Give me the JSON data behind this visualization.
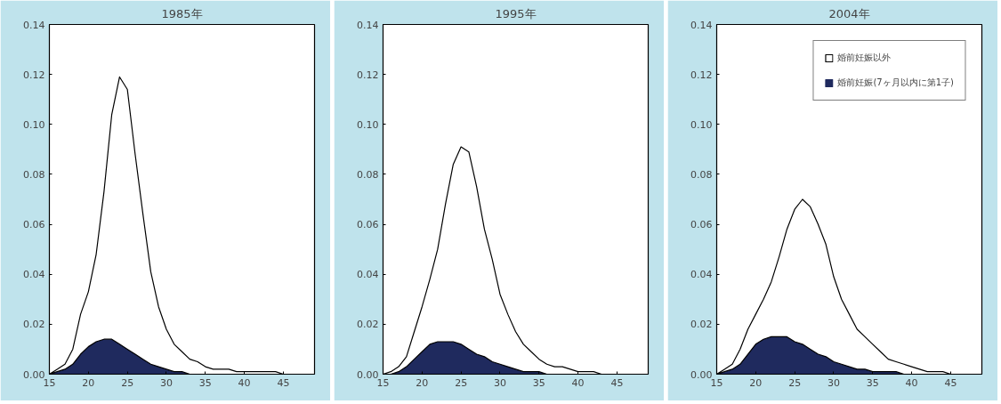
{
  "chart_data": [
    {
      "type": "area",
      "title": "1985年",
      "stacked": true,
      "x": [
        15,
        16,
        17,
        18,
        19,
        20,
        21,
        22,
        23,
        24,
        25,
        26,
        27,
        28,
        29,
        30,
        31,
        32,
        33,
        34,
        35,
        36,
        37,
        38,
        39,
        40,
        41,
        42,
        43,
        44,
        45,
        46,
        47,
        48,
        49
      ],
      "xlim": [
        15,
        49
      ],
      "ylim": [
        0,
        0.14
      ],
      "xticks": [
        15,
        20,
        25,
        30,
        35,
        40,
        45
      ],
      "yticks": [
        {
          "value": 0,
          "label": "0.00"
        },
        {
          "value": 0.02,
          "label": "0.02"
        },
        {
          "value": 0.04,
          "label": "0.04"
        },
        {
          "value": 0.06,
          "label": "0.06"
        },
        {
          "value": 0.08,
          "label": "0.08"
        },
        {
          "value": 0.1,
          "label": "0.10"
        },
        {
          "value": 0.12,
          "label": "0.12"
        },
        {
          "value": 0.14,
          "label": "0.14"
        }
      ],
      "grid": false,
      "legend": false,
      "series": [
        {
          "color": "#1f2a5e",
          "values": [
            0,
            0.001,
            0.002,
            0.004,
            0.008,
            0.011,
            0.013,
            0.014,
            0.014,
            0.012,
            0.01,
            0.008,
            0.006,
            0.004,
            0.003,
            0.002,
            0.001,
            0.001,
            0,
            0,
            0,
            0,
            0,
            0,
            0,
            0,
            0,
            0,
            0,
            0,
            0,
            0,
            0,
            0,
            0
          ]
        },
        {
          "color": "#ffffff",
          "values": [
            0,
            0.001,
            0.002,
            0.006,
            0.016,
            0.022,
            0.035,
            0.059,
            0.09,
            0.107,
            0.104,
            0.08,
            0.058,
            0.037,
            0.024,
            0.016,
            0.011,
            0.008,
            0.006,
            0.005,
            0.003,
            0.002,
            0.002,
            0.002,
            0.001,
            0.001,
            0.001,
            0.001,
            0.001,
            0.001,
            0,
            0,
            0,
            0,
            0
          ]
        }
      ]
    },
    {
      "type": "area",
      "title": "1995年",
      "stacked": true,
      "x": [
        15,
        16,
        17,
        18,
        19,
        20,
        21,
        22,
        23,
        24,
        25,
        26,
        27,
        28,
        29,
        30,
        31,
        32,
        33,
        34,
        35,
        36,
        37,
        38,
        39,
        40,
        41,
        42,
        43,
        44,
        45,
        46,
        47,
        48,
        49
      ],
      "xlim": [
        15,
        49
      ],
      "ylim": [
        0,
        0.14
      ],
      "xticks": [
        15,
        20,
        25,
        30,
        35,
        40,
        45
      ],
      "yticks": [
        {
          "value": 0,
          "label": "0.00"
        },
        {
          "value": 0.02,
          "label": "0.02"
        },
        {
          "value": 0.04,
          "label": "0.04"
        },
        {
          "value": 0.06,
          "label": "0.06"
        },
        {
          "value": 0.08,
          "label": "0.08"
        },
        {
          "value": 0.1,
          "label": "0.10"
        },
        {
          "value": 0.12,
          "label": "0.12"
        },
        {
          "value": 0.14,
          "label": "0.14"
        }
      ],
      "grid": false,
      "legend": false,
      "series": [
        {
          "color": "#1f2a5e",
          "values": [
            0,
            0,
            0.001,
            0.003,
            0.006,
            0.009,
            0.012,
            0.013,
            0.013,
            0.013,
            0.012,
            0.01,
            0.008,
            0.007,
            0.005,
            0.004,
            0.003,
            0.002,
            0.001,
            0.001,
            0.001,
            0,
            0,
            0,
            0,
            0,
            0,
            0,
            0,
            0,
            0,
            0,
            0,
            0,
            0
          ]
        },
        {
          "color": "#ffffff",
          "values": [
            0,
            0.001,
            0.002,
            0.004,
            0.011,
            0.018,
            0.026,
            0.037,
            0.055,
            0.071,
            0.079,
            0.079,
            0.067,
            0.051,
            0.041,
            0.028,
            0.021,
            0.015,
            0.011,
            0.008,
            0.005,
            0.004,
            0.003,
            0.003,
            0.002,
            0.001,
            0.001,
            0.001,
            0,
            0,
            0,
            0,
            0,
            0,
            0
          ]
        }
      ]
    },
    {
      "type": "area",
      "title": "2004年",
      "stacked": true,
      "x": [
        15,
        16,
        17,
        18,
        19,
        20,
        21,
        22,
        23,
        24,
        25,
        26,
        27,
        28,
        29,
        30,
        31,
        32,
        33,
        34,
        35,
        36,
        37,
        38,
        39,
        40,
        41,
        42,
        43,
        44,
        45,
        46,
        47,
        48,
        49
      ],
      "xlim": [
        15,
        49
      ],
      "ylim": [
        0,
        0.14
      ],
      "xticks": [
        15,
        20,
        25,
        30,
        35,
        40,
        45
      ],
      "yticks": [
        {
          "value": 0,
          "label": "0.00"
        },
        {
          "value": 0.02,
          "label": "0.02"
        },
        {
          "value": 0.04,
          "label": "0.04"
        },
        {
          "value": 0.06,
          "label": "0.06"
        },
        {
          "value": 0.08,
          "label": "0.08"
        },
        {
          "value": 0.1,
          "label": "0.10"
        },
        {
          "value": 0.12,
          "label": "0.12"
        },
        {
          "value": 0.14,
          "label": "0.14"
        }
      ],
      "grid": false,
      "legend": "top right",
      "series": [
        {
          "name": "婚前妊娠(7ヶ月以内に第1子)",
          "color": "#1f2a5e",
          "values": [
            0,
            0.001,
            0.002,
            0.004,
            0.008,
            0.012,
            0.014,
            0.015,
            0.015,
            0.015,
            0.013,
            0.012,
            0.01,
            0.008,
            0.007,
            0.005,
            0.004,
            0.003,
            0.002,
            0.002,
            0.001,
            0.001,
            0.001,
            0.001,
            0,
            0,
            0,
            0,
            0,
            0,
            0,
            0,
            0,
            0,
            0
          ]
        },
        {
          "name": "婚前妊娠以外",
          "color": "#ffffff",
          "values": [
            0,
            0.001,
            0.002,
            0.006,
            0.01,
            0.012,
            0.016,
            0.022,
            0.032,
            0.043,
            0.053,
            0.058,
            0.057,
            0.052,
            0.045,
            0.034,
            0.026,
            0.021,
            0.016,
            0.013,
            0.011,
            0.008,
            0.005,
            0.004,
            0.004,
            0.003,
            0.002,
            0.001,
            0.001,
            0.001,
            0,
            0,
            0,
            0,
            0
          ]
        }
      ]
    }
  ]
}
